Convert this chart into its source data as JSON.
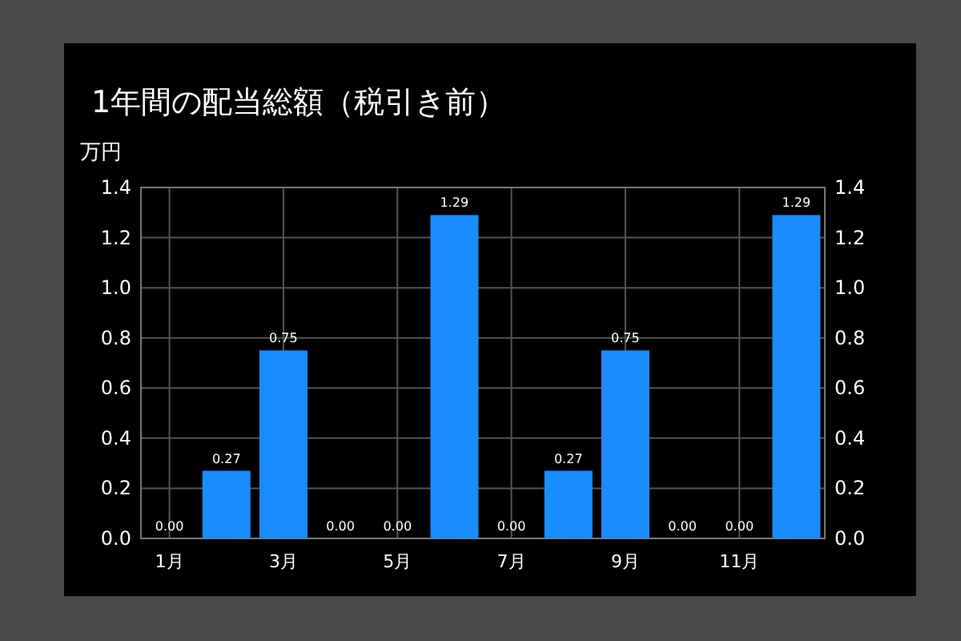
{
  "chart_data": {
    "type": "bar",
    "title": "1年間の配当総額（税引き前）",
    "ylabel": "万円",
    "categories": [
      "1月",
      null,
      "3月",
      null,
      "5月",
      null,
      "7月",
      null,
      "9月",
      null,
      "11月",
      null
    ],
    "values": [
      0,
      0.27,
      0.75,
      0,
      0,
      1.29,
      0,
      0.27,
      0.75,
      0,
      0,
      1.29
    ],
    "value_labels": [
      "0.00",
      "0.27",
      "0.75",
      "0.00",
      "0.00",
      "1.29",
      "0.00",
      "0.27",
      "0.75",
      "0.00",
      "0.00",
      "1.29"
    ],
    "color": "#1a8cff",
    "ylim": [
      0,
      1.4
    ],
    "yticks": [
      {
        "value": 0,
        "label": "0.0"
      },
      {
        "value": 0.2,
        "label": "0.2"
      },
      {
        "value": 0.4,
        "label": "0.4"
      },
      {
        "value": 0.6,
        "label": "0.6"
      },
      {
        "value": 0.8,
        "label": "0.8"
      },
      {
        "value": 1,
        "label": "1.0"
      },
      {
        "value": 1.2,
        "label": "1.2"
      },
      {
        "value": 1.4,
        "label": "1.4"
      }
    ],
    "y2lim": [
      0,
      1.4
    ],
    "y2ticks": [
      {
        "value": 0,
        "label": "0.0"
      },
      {
        "value": 0.2,
        "label": "0.2"
      },
      {
        "value": 0.4,
        "label": "0.4"
      },
      {
        "value": 0.6,
        "label": "0.6"
      },
      {
        "value": 0.8,
        "label": "0.8"
      },
      {
        "value": 1,
        "label": "1.0"
      },
      {
        "value": 1.2,
        "label": "1.2"
      },
      {
        "value": 1.4,
        "label": "1.4"
      }
    ],
    "grid": true
  }
}
